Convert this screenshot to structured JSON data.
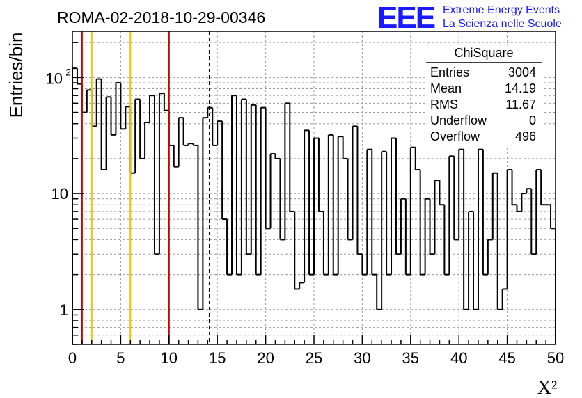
{
  "chart_data": {
    "type": "histogram",
    "title": "ROMA-02-2018-10-29-00346",
    "xlabel": "X²",
    "ylabel": "Entries/bin",
    "xlim": [
      0,
      50
    ],
    "ylim": [
      0.5,
      250
    ],
    "yscale": "log",
    "grid": true,
    "bin_width": 0.5,
    "bin_start": 0,
    "x_ticks": [
      "0",
      "5",
      "10",
      "15",
      "20",
      "25",
      "30",
      "35",
      "40",
      "45",
      "50"
    ],
    "y_ticks": [
      {
        "value": 1,
        "label": "1"
      },
      {
        "value": 10,
        "label": "10"
      },
      {
        "value": 100,
        "label": "10",
        "exponent": "2"
      }
    ],
    "values": [
      120,
      88,
      50,
      78,
      38,
      97,
      16,
      68,
      32,
      90,
      36,
      56,
      15,
      65,
      20,
      41,
      70,
      3,
      73,
      52,
      26,
      17,
      45,
      26,
      27,
      26,
      1,
      45,
      55,
      26,
      42,
      6,
      2,
      70,
      2,
      65,
      3,
      58,
      2,
      55,
      5,
      22,
      20,
      4,
      60,
      7,
      1.5,
      1.7,
      35,
      2,
      30,
      7,
      2,
      32,
      2,
      31,
      20,
      4,
      38,
      3,
      2,
      24,
      2,
      1,
      23,
      2,
      30,
      3,
      9,
      2,
      25,
      16,
      2,
      9,
      3,
      13,
      8,
      2,
      21,
      4,
      24,
      1,
      7,
      1,
      24,
      2,
      4,
      15,
      1,
      1.5,
      16,
      8,
      7,
      10,
      11,
      3,
      16,
      8,
      8,
      5
    ],
    "vertical_lines": [
      {
        "x": 1,
        "color": "#cc0000",
        "style": "solid"
      },
      {
        "x": 2,
        "color": "#f0c000",
        "style": "solid"
      },
      {
        "x": 6,
        "color": "#f0c000",
        "style": "solid"
      },
      {
        "x": 10,
        "color": "#cc0000",
        "style": "solid"
      },
      {
        "x": 14.19,
        "color": "#000000",
        "style": "dashed"
      }
    ],
    "stats_box": {
      "name": "ChiSquare",
      "rows": [
        {
          "label": "Entries",
          "value": "3004"
        },
        {
          "label": "Mean",
          "value": "14.19"
        },
        {
          "label": "RMS",
          "value": "11.67"
        },
        {
          "label": "Underflow",
          "value": "0"
        },
        {
          "label": "Overflow",
          "value": "496"
        }
      ]
    }
  },
  "logo": {
    "mark": "EEE",
    "line1": "Extreme Energy Events",
    "line2": "La Scienza nelle Scuole",
    "color": "#1a1aff"
  }
}
